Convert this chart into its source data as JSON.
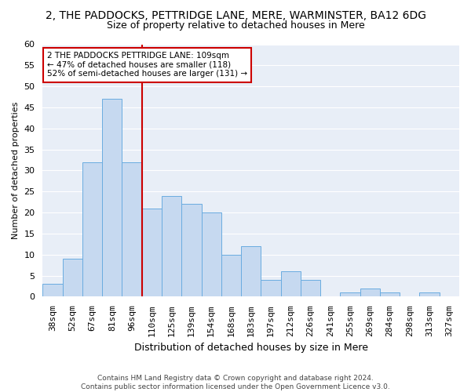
{
  "title1": "2, THE PADDOCKS, PETTRIDGE LANE, MERE, WARMINSTER, BA12 6DG",
  "title2": "Size of property relative to detached houses in Mere",
  "xlabel": "Distribution of detached houses by size in Mere",
  "ylabel": "Number of detached properties",
  "categories": [
    "38sqm",
    "52sqm",
    "67sqm",
    "81sqm",
    "96sqm",
    "110sqm",
    "125sqm",
    "139sqm",
    "154sqm",
    "168sqm",
    "183sqm",
    "197sqm",
    "212sqm",
    "226sqm",
    "241sqm",
    "255sqm",
    "269sqm",
    "284sqm",
    "298sqm",
    "313sqm",
    "327sqm"
  ],
  "values": [
    3,
    9,
    32,
    47,
    32,
    21,
    24,
    22,
    20,
    10,
    12,
    4,
    6,
    4,
    0,
    1,
    2,
    1,
    0,
    1,
    0
  ],
  "bar_color": "#c6d9f0",
  "bar_edge_color": "#6aace0",
  "vline_x_index": 5,
  "vline_color": "#cc0000",
  "annotation_text": "2 THE PADDOCKS PETTRIDGE LANE: 109sqm\n← 47% of detached houses are smaller (118)\n52% of semi-detached houses are larger (131) →",
  "annotation_box_color": "#ffffff",
  "annotation_box_edge_color": "#cc0000",
  "ylim": [
    0,
    60
  ],
  "yticks": [
    0,
    5,
    10,
    15,
    20,
    25,
    30,
    35,
    40,
    45,
    50,
    55,
    60
  ],
  "footer_text": "Contains HM Land Registry data © Crown copyright and database right 2024.\nContains public sector information licensed under the Open Government Licence v3.0.",
  "background_color": "#ffffff",
  "plot_bg_color": "#e8eef7",
  "grid_color": "#ffffff",
  "title1_fontsize": 10,
  "title2_fontsize": 9,
  "xlabel_fontsize": 9,
  "ylabel_fontsize": 8,
  "tick_fontsize": 8,
  "footer_fontsize": 6.5
}
